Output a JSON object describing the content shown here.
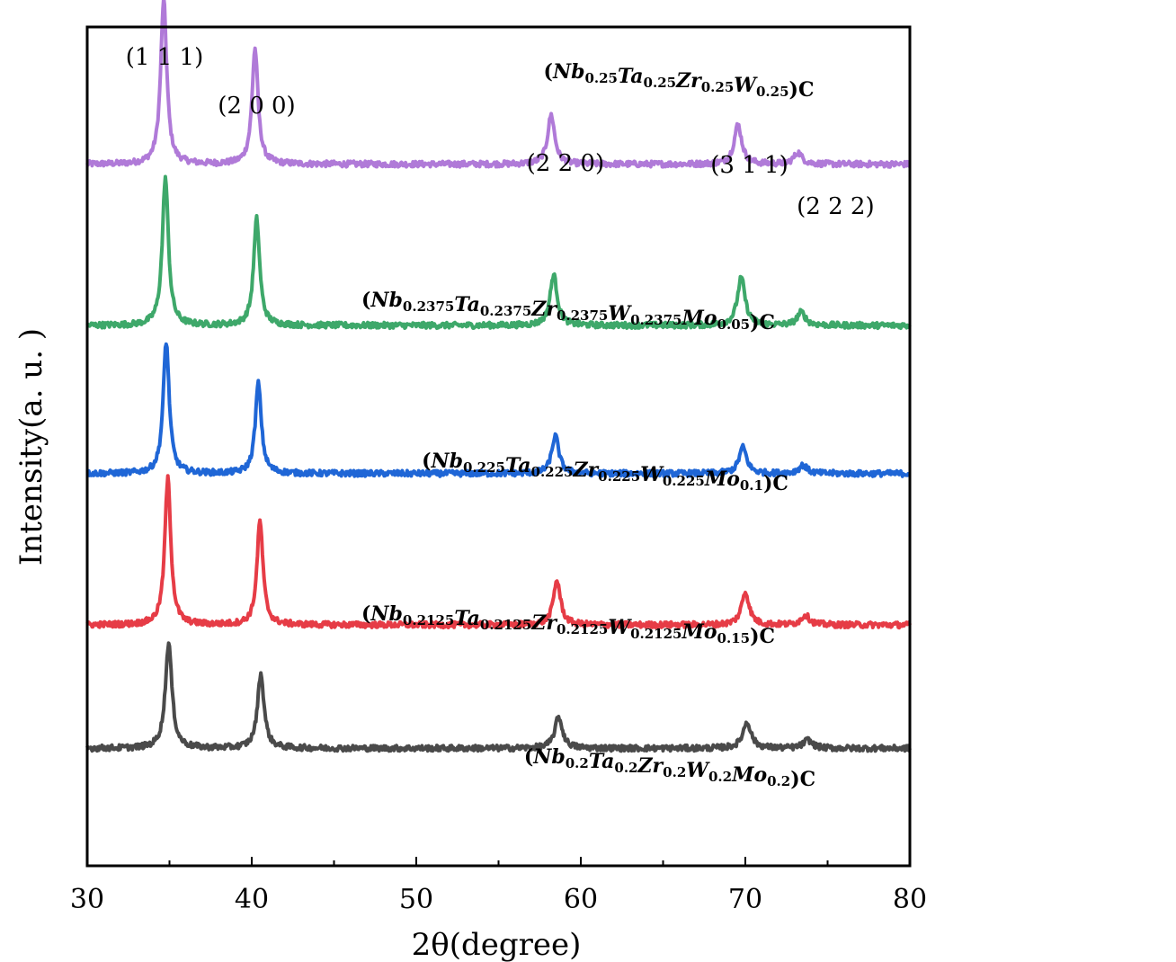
{
  "chart_data": {
    "type": "line",
    "title": "",
    "xlabel": "2θ(degree)",
    "ylabel": "Intensity(a. u. )",
    "xlim": [
      30,
      80
    ],
    "xticks": [
      30,
      40,
      50,
      60,
      70,
      80
    ],
    "xtick_labels": [
      "30",
      "40",
      "50",
      "60",
      "70",
      "80"
    ],
    "y_ticks_shown": false,
    "grid": false,
    "legend": "none; each series labeled inline above its trace",
    "peak_labels": [
      {
        "text": "(1 1 1)",
        "x": 34.7
      },
      {
        "text": "(2 0 0)",
        "x": 40.3
      },
      {
        "text": "(2 2 0)",
        "x": 58.3
      },
      {
        "text": "(3 1 1)",
        "x": 69.7
      },
      {
        "text": "(2 2 2)",
        "x": 73.3
      }
    ],
    "series": [
      {
        "name_parts": [
          {
            "el": "Nb",
            "sub": "0.25"
          },
          {
            "el": "Ta",
            "sub": "0.25"
          },
          {
            "el": "Zr",
            "sub": "0.25"
          },
          {
            "el": "W",
            "sub": "0.25"
          }
        ],
        "color": "#b07ad8",
        "baseline": 4.1,
        "noise": 0.035,
        "peaks": [
          {
            "x": 34.65,
            "h": 1.0,
            "w": 0.22
          },
          {
            "x": 40.2,
            "h": 0.7,
            "w": 0.22
          },
          {
            "x": 58.2,
            "h": 0.3,
            "w": 0.26
          },
          {
            "x": 69.55,
            "h": 0.24,
            "w": 0.28
          },
          {
            "x": 73.2,
            "h": 0.07,
            "w": 0.3
          }
        ]
      },
      {
        "name_parts": [
          {
            "el": "Nb",
            "sub": "0.2375"
          },
          {
            "el": "Ta",
            "sub": "0.2375"
          },
          {
            "el": "Zr",
            "sub": "0.2375"
          },
          {
            "el": "W",
            "sub": "0.2375"
          },
          {
            "el": "Mo",
            "sub": "0.05"
          }
        ],
        "color": "#3ea86a",
        "baseline": 3.12,
        "noise": 0.035,
        "peaks": [
          {
            "x": 34.75,
            "h": 0.9,
            "w": 0.22
          },
          {
            "x": 40.3,
            "h": 0.65,
            "w": 0.22
          },
          {
            "x": 58.35,
            "h": 0.31,
            "w": 0.26
          },
          {
            "x": 69.75,
            "h": 0.29,
            "w": 0.28
          },
          {
            "x": 73.4,
            "h": 0.08,
            "w": 0.3
          }
        ]
      },
      {
        "name_parts": [
          {
            "el": "Nb",
            "sub": "0.225"
          },
          {
            "el": "Ta",
            "sub": "0.225"
          },
          {
            "el": "Zr",
            "sub": "0.225"
          },
          {
            "el": "W",
            "sub": "0.225"
          },
          {
            "el": "Mo",
            "sub": "0.1"
          }
        ],
        "color": "#1f66d6",
        "baseline": 2.22,
        "noise": 0.035,
        "peaks": [
          {
            "x": 34.8,
            "h": 0.8,
            "w": 0.22
          },
          {
            "x": 40.4,
            "h": 0.55,
            "w": 0.22
          },
          {
            "x": 58.45,
            "h": 0.23,
            "w": 0.26
          },
          {
            "x": 69.85,
            "h": 0.16,
            "w": 0.28
          },
          {
            "x": 73.5,
            "h": 0.05,
            "w": 0.3
          }
        ]
      },
      {
        "name_parts": [
          {
            "el": "Nb",
            "sub": "0.2125"
          },
          {
            "el": "Ta",
            "sub": "0.2125"
          },
          {
            "el": "Zr",
            "sub": "0.2125"
          },
          {
            "el": "W",
            "sub": "0.2125"
          },
          {
            "el": "Mo",
            "sub": "0.15"
          }
        ],
        "color": "#e63c46",
        "baseline": 1.3,
        "noise": 0.035,
        "peaks": [
          {
            "x": 34.9,
            "h": 0.89,
            "w": 0.22
          },
          {
            "x": 40.5,
            "h": 0.63,
            "w": 0.22
          },
          {
            "x": 58.55,
            "h": 0.27,
            "w": 0.26
          },
          {
            "x": 70.0,
            "h": 0.2,
            "w": 0.28
          },
          {
            "x": 73.65,
            "h": 0.06,
            "w": 0.3
          }
        ]
      },
      {
        "name_parts": [
          {
            "el": "Nb",
            "sub": "0.2"
          },
          {
            "el": "Ta",
            "sub": "0.2"
          },
          {
            "el": "Zr",
            "sub": "0.2"
          },
          {
            "el": "W",
            "sub": "0.2"
          },
          {
            "el": "Mo",
            "sub": "0.2"
          }
        ],
        "color": "#4a4a4a",
        "baseline": 0.55,
        "noise": 0.035,
        "peaks": [
          {
            "x": 34.95,
            "h": 0.64,
            "w": 0.24
          },
          {
            "x": 40.55,
            "h": 0.45,
            "w": 0.24
          },
          {
            "x": 58.65,
            "h": 0.19,
            "w": 0.28
          },
          {
            "x": 70.1,
            "h": 0.16,
            "w": 0.3
          },
          {
            "x": 73.8,
            "h": 0.05,
            "w": 0.32
          }
        ]
      }
    ]
  }
}
